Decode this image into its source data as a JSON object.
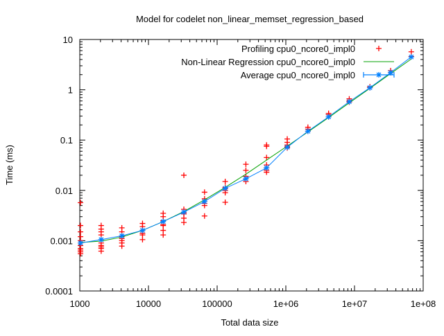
{
  "chart_data": {
    "type": "scatter",
    "title": "Model for codelet non_linear_memset_regression_based",
    "xlabel": "Total data size",
    "ylabel": "Time (ms)",
    "xscale": "log",
    "yscale": "log",
    "xlim": [
      1000,
      100000000
    ],
    "ylim": [
      0.0001,
      10
    ],
    "xticks": [
      {
        "v": 1000,
        "label": "1000"
      },
      {
        "v": 10000,
        "label": "10000"
      },
      {
        "v": 100000,
        "label": "100000"
      },
      {
        "v": 1000000,
        "label": "1e+06"
      },
      {
        "v": 10000000,
        "label": "1e+07"
      },
      {
        "v": 100000000,
        "label": "1e+08"
      }
    ],
    "yticks": [
      {
        "v": 0.0001,
        "label": "0.0001"
      },
      {
        "v": 0.001,
        "label": "0.001"
      },
      {
        "v": 0.01,
        "label": "0.01"
      },
      {
        "v": 0.1,
        "label": "0.1"
      },
      {
        "v": 1,
        "label": "1"
      },
      {
        "v": 10,
        "label": "10"
      }
    ],
    "grid": false,
    "legend_position": "top-right",
    "series": [
      {
        "name": "Profiling cpu0_ncore0_impl0",
        "style": "points-plus",
        "color": "#ff0000",
        "points": [
          [
            1024,
            0.0057
          ],
          [
            1024,
            0.002
          ],
          [
            1024,
            0.0015
          ],
          [
            1024,
            0.0012
          ],
          [
            1024,
            0.001
          ],
          [
            1024,
            0.0009
          ],
          [
            1024,
            0.0008
          ],
          [
            1024,
            0.0007
          ],
          [
            1024,
            0.00065
          ],
          [
            1024,
            0.0006
          ],
          [
            1024,
            0.00055
          ],
          [
            2048,
            0.002
          ],
          [
            2048,
            0.0017
          ],
          [
            2048,
            0.0015
          ],
          [
            2048,
            0.0013
          ],
          [
            2048,
            0.0009
          ],
          [
            2048,
            0.0008
          ],
          [
            2048,
            0.00075
          ],
          [
            2048,
            0.0007
          ],
          [
            2048,
            0.00062
          ],
          [
            4096,
            0.0018
          ],
          [
            4096,
            0.0015
          ],
          [
            4096,
            0.0012
          ],
          [
            4096,
            0.0011
          ],
          [
            4096,
            0.001
          ],
          [
            4096,
            0.0009
          ],
          [
            4096,
            0.00078
          ],
          [
            8192,
            0.0022
          ],
          [
            8192,
            0.0019
          ],
          [
            8192,
            0.0016
          ],
          [
            8192,
            0.0014
          ],
          [
            8192,
            0.0013
          ],
          [
            8192,
            0.00105
          ],
          [
            16384,
            0.0035
          ],
          [
            16384,
            0.003
          ],
          [
            16384,
            0.0025
          ],
          [
            16384,
            0.0021
          ],
          [
            16384,
            0.002
          ],
          [
            16384,
            0.0016
          ],
          [
            16384,
            0.0013
          ],
          [
            32768,
            0.02
          ],
          [
            32768,
            0.0042
          ],
          [
            32768,
            0.0036
          ],
          [
            32768,
            0.0034
          ],
          [
            32768,
            0.0028
          ],
          [
            32768,
            0.0023
          ],
          [
            65536,
            0.0092
          ],
          [
            65536,
            0.0068
          ],
          [
            65536,
            0.006
          ],
          [
            65536,
            0.0055
          ],
          [
            65536,
            0.005
          ],
          [
            65536,
            0.0031
          ],
          [
            131072,
            0.015
          ],
          [
            131072,
            0.0115
          ],
          [
            131072,
            0.0108
          ],
          [
            131072,
            0.01
          ],
          [
            131072,
            0.009
          ],
          [
            131072,
            0.0058
          ],
          [
            262144,
            0.033
          ],
          [
            262144,
            0.025
          ],
          [
            262144,
            0.019
          ],
          [
            262144,
            0.017
          ],
          [
            262144,
            0.015
          ],
          [
            524288,
            0.08
          ],
          [
            524288,
            0.075
          ],
          [
            524288,
            0.045
          ],
          [
            524288,
            0.032
          ],
          [
            524288,
            0.028
          ],
          [
            524288,
            0.025
          ],
          [
            524288,
            0.023
          ],
          [
            1048576,
            0.105
          ],
          [
            1048576,
            0.09
          ],
          [
            1048576,
            0.08
          ],
          [
            1048576,
            0.075
          ],
          [
            1048576,
            0.07
          ],
          [
            2097152,
            0.18
          ],
          [
            2097152,
            0.165
          ],
          [
            2097152,
            0.15
          ],
          [
            4194304,
            0.34
          ],
          [
            4194304,
            0.32
          ],
          [
            4194304,
            0.29
          ],
          [
            8388608,
            0.66
          ],
          [
            8388608,
            0.6
          ],
          [
            8388608,
            0.57
          ],
          [
            16777216,
            1.15
          ],
          [
            16777216,
            1.1
          ],
          [
            33554432,
            2.4
          ],
          [
            33554432,
            2.2
          ],
          [
            67108864,
            5.7
          ],
          [
            67108864,
            4.6
          ]
        ]
      },
      {
        "name": "Non-Linear Regression cpu0_ncore0_impl0",
        "style": "line",
        "color": "#00a000",
        "points": [
          [
            1024,
            0.00092
          ],
          [
            2048,
            0.00098
          ],
          [
            4096,
            0.00118
          ],
          [
            8192,
            0.0016
          ],
          [
            16384,
            0.0024
          ],
          [
            32768,
            0.0038
          ],
          [
            65536,
            0.0065
          ],
          [
            131072,
            0.0115
          ],
          [
            262144,
            0.021
          ],
          [
            524288,
            0.04
          ],
          [
            1048576,
            0.076
          ],
          [
            2097152,
            0.145
          ],
          [
            4194304,
            0.28
          ],
          [
            8388608,
            0.55
          ],
          [
            16777216,
            1.07
          ],
          [
            33554432,
            2.1
          ],
          [
            67108864,
            4.1
          ]
        ]
      },
      {
        "name": "Average cpu0_ncore0_impl0",
        "style": "linespoints-errorbars",
        "color": "#0080ff",
        "points": [
          [
            1024,
            0.0009
          ],
          [
            2048,
            0.00105
          ],
          [
            4096,
            0.00125
          ],
          [
            8192,
            0.0016
          ],
          [
            16384,
            0.0024
          ],
          [
            32768,
            0.0037
          ],
          [
            65536,
            0.006
          ],
          [
            131072,
            0.011
          ],
          [
            262144,
            0.017
          ],
          [
            524288,
            0.028
          ],
          [
            1048576,
            0.072
          ],
          [
            2097152,
            0.15
          ],
          [
            4194304,
            0.29
          ],
          [
            8388608,
            0.58
          ],
          [
            16777216,
            1.1
          ],
          [
            33554432,
            2.2
          ],
          [
            67108864,
            4.5
          ]
        ]
      }
    ]
  }
}
